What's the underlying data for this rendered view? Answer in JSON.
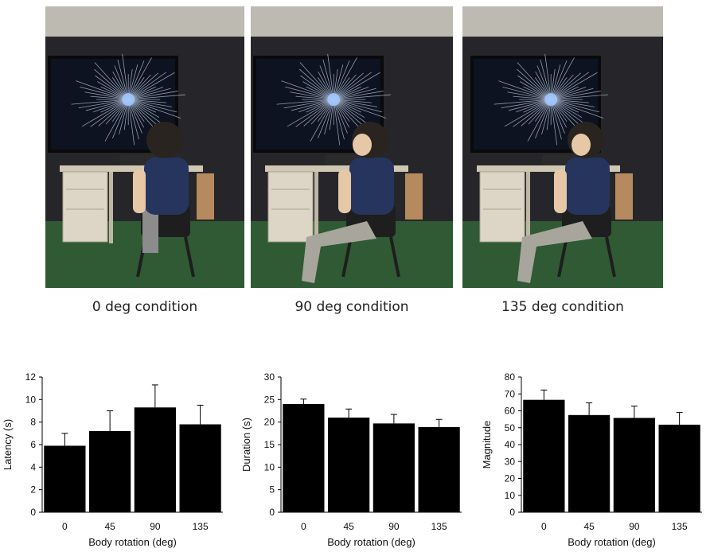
{
  "photos": [
    {
      "caption": "0 deg condition"
    },
    {
      "caption": "90 deg condition"
    },
    {
      "caption": "135 deg condition"
    }
  ],
  "chart_data": [
    {
      "type": "bar",
      "categories": [
        "0",
        "45",
        "90",
        "135"
      ],
      "values": [
        5.9,
        7.2,
        9.3,
        7.8
      ],
      "errors": [
        1.1,
        1.8,
        2.0,
        1.7
      ],
      "xlabel": "Body rotation (deg)",
      "ylabel": "Latency (s)",
      "ylim": [
        0,
        12
      ],
      "yticks": [
        0,
        2,
        4,
        6,
        8,
        10,
        12
      ],
      "grid": false,
      "bar_color": "#000000"
    },
    {
      "type": "bar",
      "categories": [
        "0",
        "45",
        "90",
        "135"
      ],
      "values": [
        24.0,
        21.0,
        19.7,
        18.9
      ],
      "errors": [
        1.1,
        1.9,
        2.0,
        1.7
      ],
      "xlabel": "Body rotation (deg)",
      "ylabel": "Duration (s)",
      "ylim": [
        0,
        30
      ],
      "yticks": [
        0,
        5,
        10,
        15,
        20,
        25,
        30
      ],
      "grid": false,
      "bar_color": "#000000"
    },
    {
      "type": "bar",
      "categories": [
        "0",
        "45",
        "90",
        "135"
      ],
      "values": [
        66.5,
        57.5,
        55.8,
        51.8
      ],
      "errors": [
        5.8,
        7.2,
        7.0,
        7.2
      ],
      "xlabel": "Body rotation (deg)",
      "ylabel": "Magnitude",
      "ylim": [
        0,
        80
      ],
      "yticks": [
        0,
        10,
        20,
        30,
        40,
        50,
        60,
        70,
        80
      ],
      "grid": false,
      "bar_color": "#000000"
    }
  ]
}
